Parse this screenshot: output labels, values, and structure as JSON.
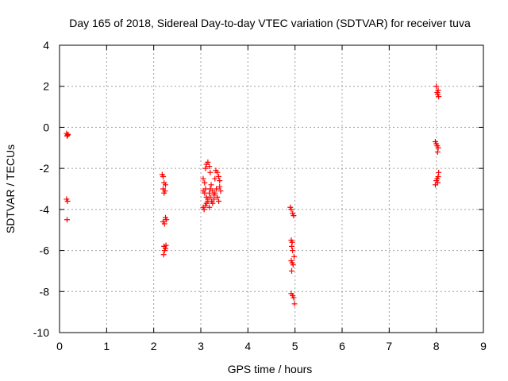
{
  "chart_data": {
    "type": "scatter",
    "title": "Day 165 of 2018, Sidereal Day-to-day VTEC variation (SDTVAR) for receiver tuva",
    "xlabel": "GPS time / hours",
    "ylabel": "SDTVAR / TECUs",
    "xlim": [
      0,
      9
    ],
    "ylim": [
      -10,
      4
    ],
    "xticks": [
      "0",
      "1",
      "2",
      "3",
      "4",
      "5",
      "6",
      "7",
      "8",
      "9"
    ],
    "yticks": [
      "4",
      "2",
      "0",
      "-2",
      "-4",
      "-6",
      "-8",
      "-10"
    ],
    "grid": true,
    "marker": "+",
    "color": "#ff0000",
    "series": [
      {
        "name": "SDTVAR",
        "points": [
          [
            0.15,
            -0.3
          ],
          [
            0.17,
            -0.38
          ],
          [
            0.16,
            -0.42
          ],
          [
            0.18,
            -0.35
          ],
          [
            0.15,
            -3.5
          ],
          [
            0.17,
            -3.6
          ],
          [
            0.16,
            -4.5
          ],
          [
            2.18,
            -2.3
          ],
          [
            2.2,
            -2.4
          ],
          [
            2.22,
            -2.7
          ],
          [
            2.25,
            -2.8
          ],
          [
            2.2,
            -3.0
          ],
          [
            2.24,
            -3.1
          ],
          [
            2.22,
            -3.2
          ],
          [
            2.2,
            -4.6
          ],
          [
            2.23,
            -4.7
          ],
          [
            2.25,
            -4.4
          ],
          [
            2.27,
            -4.5
          ],
          [
            2.22,
            -5.8
          ],
          [
            2.25,
            -5.9
          ],
          [
            2.23,
            -6.0
          ],
          [
            2.21,
            -6.2
          ],
          [
            2.26,
            -5.75
          ],
          [
            3.05,
            -2.5
          ],
          [
            3.08,
            -2.7
          ],
          [
            3.1,
            -2.0
          ],
          [
            3.12,
            -1.8
          ],
          [
            3.15,
            -1.7
          ],
          [
            3.18,
            -1.9
          ],
          [
            3.2,
            -2.2
          ],
          [
            3.05,
            -3.1
          ],
          [
            3.08,
            -3.2
          ],
          [
            3.1,
            -3.0
          ],
          [
            3.12,
            -3.4
          ],
          [
            3.15,
            -3.5
          ],
          [
            3.18,
            -3.2
          ],
          [
            3.05,
            -3.9
          ],
          [
            3.07,
            -4.0
          ],
          [
            3.1,
            -3.8
          ],
          [
            3.12,
            -3.7
          ],
          [
            3.15,
            -3.6
          ],
          [
            3.18,
            -3.9
          ],
          [
            3.2,
            -3.0
          ],
          [
            3.22,
            -2.8
          ],
          [
            3.25,
            -3.1
          ],
          [
            3.28,
            -3.3
          ],
          [
            3.3,
            -2.5
          ],
          [
            3.32,
            -2.1
          ],
          [
            3.35,
            -2.2
          ],
          [
            3.38,
            -2.4
          ],
          [
            3.4,
            -2.6
          ],
          [
            3.25,
            -3.7
          ],
          [
            3.28,
            -3.5
          ],
          [
            3.3,
            -3.2
          ],
          [
            3.33,
            -3.0
          ],
          [
            3.35,
            -3.4
          ],
          [
            3.38,
            -3.6
          ],
          [
            3.4,
            -2.9
          ],
          [
            3.42,
            -3.1
          ],
          [
            3.2,
            -3.4
          ],
          [
            3.23,
            -3.6
          ],
          [
            4.9,
            -3.9
          ],
          [
            4.92,
            -4.0
          ],
          [
            4.95,
            -4.2
          ],
          [
            4.97,
            -4.3
          ],
          [
            4.92,
            -5.5
          ],
          [
            4.94,
            -5.6
          ],
          [
            4.93,
            -5.8
          ],
          [
            4.95,
            -6.0
          ],
          [
            4.92,
            -6.5
          ],
          [
            4.94,
            -6.6
          ],
          [
            4.96,
            -6.7
          ],
          [
            4.98,
            -6.3
          ],
          [
            4.93,
            -7.0
          ],
          [
            4.92,
            -8.1
          ],
          [
            4.95,
            -8.2
          ],
          [
            4.97,
            -8.3
          ],
          [
            4.99,
            -8.6
          ],
          [
            8.0,
            2.0
          ],
          [
            8.02,
            1.7
          ],
          [
            8.03,
            1.6
          ],
          [
            8.05,
            1.5
          ],
          [
            8.04,
            1.8
          ],
          [
            7.98,
            -0.7
          ],
          [
            8.0,
            -0.8
          ],
          [
            8.02,
            -0.9
          ],
          [
            8.04,
            -1.0
          ],
          [
            8.03,
            -1.2
          ],
          [
            7.98,
            -2.8
          ],
          [
            8.0,
            -2.6
          ],
          [
            8.02,
            -2.5
          ],
          [
            8.04,
            -2.4
          ],
          [
            8.05,
            -2.2
          ],
          [
            8.03,
            -2.7
          ]
        ]
      }
    ]
  }
}
